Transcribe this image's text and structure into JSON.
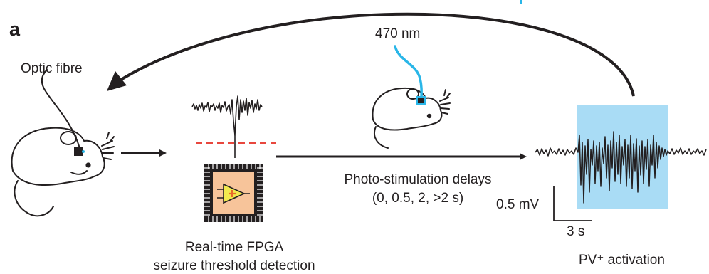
{
  "panel_label": "a",
  "labels": {
    "optic_fibre": "Optic fibre",
    "wavelength": "470 nm",
    "fpga_line1": "Real-time FPGA",
    "fpga_line2": "seizure threshold detection",
    "delays_line1": "Photo-stimulation delays",
    "delays_line2": "(0, 0.5, 2, >2 s)",
    "scale_voltage": "0.5 mV",
    "scale_time": "3 s",
    "pv_activation": "PV⁺ activation"
  },
  "colors": {
    "ink": "#231f20",
    "light_blue": "#29b6e8",
    "stim_box": "#a9dcf5",
    "threshold": "#e8473e",
    "chip_core": "#f7c49a",
    "chip_logo": "#f2e94e"
  },
  "icons": [
    "mouse-with-fibre-icon",
    "mouse-with-blue-light-icon",
    "fpga-chip-icon"
  ]
}
